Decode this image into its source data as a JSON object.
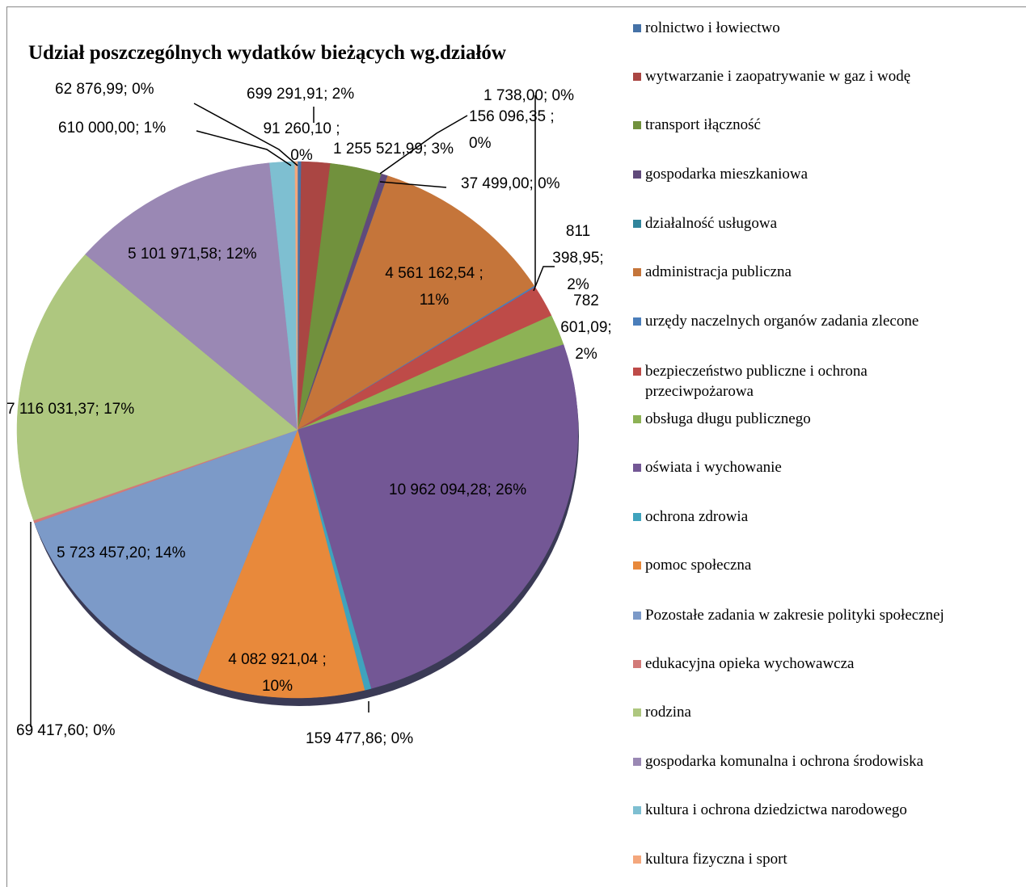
{
  "chart_data": {
    "type": "pie",
    "title": "Udział poszczególnych wydatków bieżących wg.działów",
    "categories": [
      "rolnictwo i łowiectwo",
      "wytwarzanie i zaopatrywanie w gaz i wodę",
      "transport iłączność",
      "gospodarka mieszkaniowa",
      "działalność usługowa",
      "administracja publiczna",
      "urzędy naczelnych organów zadania zlecone",
      "bezpieczeństwo publiczne i ochrona przeciwpożarowa",
      "obsługa długu publicznego",
      "oświata i wychowanie",
      "ochrona zdrowia",
      "pomoc społeczna",
      "Pozostałe zadania w zakresie polityki społecznej",
      "edukacyjna opieka wychowawcza",
      "rodzina",
      "gospodarka komunalna i ochrona środowiska",
      "kultura i ochrona dziedzictwa narodowego",
      "kultura fizyczna i sport"
    ],
    "values": [
      91260.1,
      699291.91,
      1255521.99,
      156096.35,
      1738.0,
      4561162.54,
      37499.0,
      811398.95,
      782601.09,
      10962094.28,
      159477.86,
      4082921.04,
      5723457.2,
      69417.6,
      7116031.37,
      5101971.58,
      610000.0,
      62876.99
    ],
    "value_labels": [
      "91 260,10 ; 0%",
      "699 291,91; 2%",
      "1 255 521,99; 3%",
      "156 096,35 ; 0%",
      "1 738,00; 0%",
      "4 561 162,54 ; 11%",
      "37 499,00; 0%",
      "811 398,95; 2%",
      "782 601,09; 2%",
      "10 962 094,28; 26%",
      "159 477,86; 0%",
      "4 082 921,04 ; 10%",
      "5 723 457,20; 14%",
      "69 417,60; 0%",
      "7 116 031,37; 17%",
      "5 101 971,58; 12%",
      "610 000,00; 1%",
      "62 876,99; 0%"
    ],
    "colors": [
      "#4572a7",
      "#aa4643",
      "#71913d",
      "#604a7b",
      "#31859c",
      "#c5753a",
      "#4a7ebb",
      "#be4b48",
      "#8db255",
      "#735795",
      "#3fa3bd",
      "#e8893b",
      "#7c9ac8",
      "#d27a78",
      "#aec77f",
      "#9a88b4",
      "#7ebfd1",
      "#f4a77c"
    ]
  }
}
